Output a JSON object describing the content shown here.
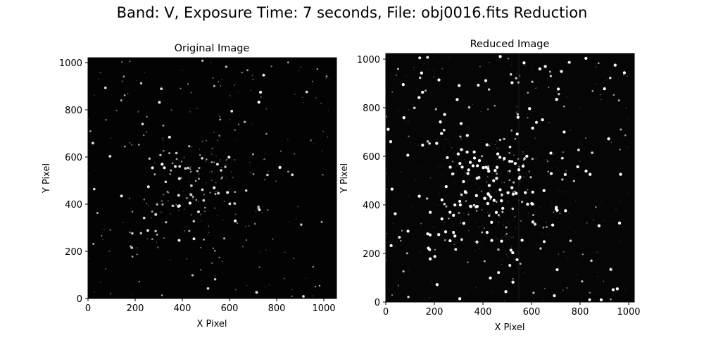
{
  "figure": {
    "title": "Band: V, Exposure Time: 7 seconds, File: obj0016.fits Reduction"
  },
  "panels": [
    {
      "title": "Original Image",
      "xlabel": "X Pixel",
      "ylabel": "Y Pixel",
      "xticks": [
        "0",
        "200",
        "400",
        "600",
        "800",
        "1000"
      ],
      "yticks": [
        "0",
        "200",
        "400",
        "600",
        "800",
        "1000"
      ],
      "background": "#030303"
    },
    {
      "title": "Reduced Image",
      "xlabel": "X Pixel",
      "ylabel": "Y Pixel",
      "xticks": [
        "0",
        "200",
        "400",
        "600",
        "800",
        "1000"
      ],
      "yticks": [
        "0",
        "200",
        "400",
        "600",
        "800",
        "1000"
      ],
      "background": "#050505"
    }
  ]
}
